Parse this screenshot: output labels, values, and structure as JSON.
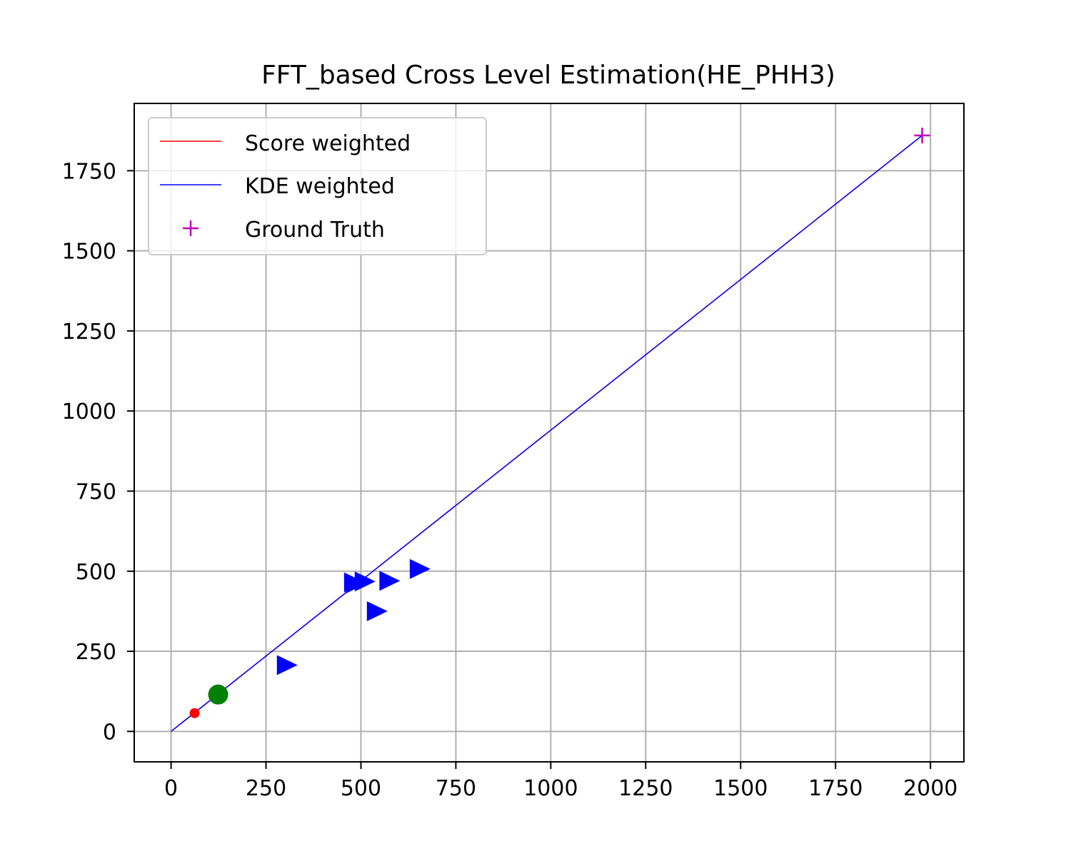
{
  "chart_data": {
    "type": "scatter",
    "title": "FFT_based Cross Level Estimation(HE_PHH3)",
    "xlabel": "",
    "ylabel": "",
    "xlim": [
      -97,
      2088
    ],
    "ylim": [
      -95,
      1960
    ],
    "xticks": [
      0,
      250,
      500,
      750,
      1000,
      1250,
      1500,
      1750,
      2000
    ],
    "yticks": [
      0,
      250,
      500,
      750,
      1000,
      1250,
      1500,
      1750
    ],
    "xtick_labels": [
      "0",
      "250",
      "500",
      "750",
      "1000",
      "1250",
      "1500",
      "1750",
      "2000"
    ],
    "ytick_labels": [
      "0",
      "250",
      "500",
      "750",
      "1000",
      "1250",
      "1500",
      "1750"
    ],
    "grid": true,
    "legend_position": "top-left",
    "legend": [
      {
        "label": "Score weighted",
        "marker": "line",
        "color": "#ff0000"
      },
      {
        "label": "KDE weighted",
        "marker": "line",
        "color": "#0000ff"
      },
      {
        "label": "Ground Truth",
        "marker": "plus",
        "color": "#bf00bf"
      }
    ],
    "lines": [
      {
        "name": "Score weighted",
        "color": "#ff0000",
        "x": [
          0,
          1978
        ],
        "y": [
          0,
          1860
        ]
      },
      {
        "name": "KDE weighted",
        "color": "#0000ff",
        "x": [
          0,
          1978
        ],
        "y": [
          0,
          1860
        ]
      }
    ],
    "ground_truth": {
      "name": "Ground Truth",
      "color": "#bf00bf",
      "x": 1978,
      "y": 1860
    },
    "points": [
      {
        "marker": "circle-small",
        "color": "#ff0000",
        "x": 62,
        "y": 57
      },
      {
        "marker": "circle-large",
        "color": "#008000",
        "x": 124,
        "y": 115
      },
      {
        "marker": "triangle-right",
        "color": "#0000ff",
        "x": 305,
        "y": 207
      },
      {
        "marker": "triangle-right",
        "color": "#0000ff",
        "x": 482,
        "y": 465
      },
      {
        "marker": "triangle-right",
        "color": "#0000ff",
        "x": 487,
        "y": 462
      },
      {
        "marker": "triangle-right",
        "color": "#0000ff",
        "x": 510,
        "y": 468
      },
      {
        "marker": "triangle-right",
        "color": "#0000ff",
        "x": 542,
        "y": 375
      },
      {
        "marker": "triangle-right",
        "color": "#0000ff",
        "x": 575,
        "y": 470
      },
      {
        "marker": "triangle-right",
        "color": "#0000ff",
        "x": 655,
        "y": 507
      }
    ]
  }
}
